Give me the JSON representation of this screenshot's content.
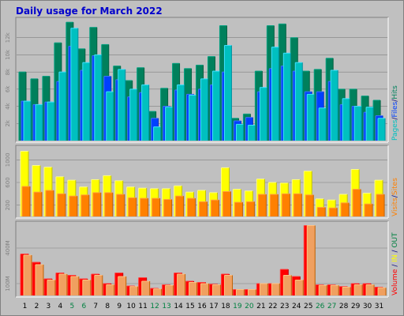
{
  "title": "Daily usage for March 2022",
  "colors": {
    "background": "#C0C0C0",
    "pages": "#00C0C0",
    "files": "#0040FF",
    "hits": "#00805C",
    "visits": "#FF8000",
    "sites": "#FF8000",
    "volume": "#FF0000",
    "in": "#FFFF00",
    "out": "#008040",
    "weekend_day": "#008040",
    "weekday": "#000000",
    "label_sep": "#000080"
  },
  "chart_data": [
    {
      "type": "bar",
      "id": "hits-files-pages",
      "y_ticks": [
        "2k",
        "4k",
        "6k",
        "8k",
        "10k",
        "12k"
      ],
      "ylim": [
        0,
        14000
      ],
      "legend": [
        "Pages",
        "Files",
        "Hits"
      ],
      "legend_separator": "/",
      "categories": [
        "1",
        "2",
        "3",
        "4",
        "5",
        "6",
        "7",
        "8",
        "9",
        "10",
        "11",
        "12",
        "13",
        "14",
        "15",
        "16",
        "17",
        "18",
        "19",
        "20",
        "21",
        "22",
        "23",
        "24",
        "25",
        "26",
        "27",
        "28",
        "29",
        "30",
        "31"
      ],
      "series": [
        {
          "name": "Hits",
          "values": [
            8000,
            7200,
            7500,
            11400,
            13800,
            10700,
            13200,
            11200,
            8700,
            7000,
            8500,
            3400,
            6100,
            9000,
            8400,
            8800,
            9800,
            13400,
            2600,
            3100,
            8100,
            13400,
            13600,
            12000,
            8100,
            8300,
            9600,
            6000,
            6000,
            5200,
            4700
          ]
        },
        {
          "name": "Files",
          "values": [
            4600,
            4200,
            4500,
            6900,
            11000,
            8200,
            9900,
            7500,
            7100,
            5100,
            5600,
            2600,
            4000,
            5900,
            5400,
            6000,
            6500,
            8000,
            2300,
            2700,
            5700,
            8400,
            8700,
            8100,
            5700,
            5700,
            6900,
            4200,
            4000,
            3300,
            2900
          ]
        },
        {
          "name": "Pages",
          "values": [
            4600,
            4200,
            4500,
            8000,
            13100,
            9100,
            10000,
            5700,
            8300,
            6000,
            6500,
            1600,
            3900,
            6500,
            5300,
            7200,
            8100,
            11100,
            1900,
            1800,
            6200,
            10900,
            10200,
            9100,
            5400,
            3800,
            8200,
            4900,
            4000,
            3900,
            2600
          ]
        }
      ]
    },
    {
      "type": "bar",
      "id": "visits-sites",
      "y_ticks": [
        "200",
        "600",
        "1000"
      ],
      "ylim": [
        0,
        1200
      ],
      "legend": [
        "Visits",
        "Sites"
      ],
      "legend_separator": "/",
      "categories": [
        "1",
        "2",
        "3",
        "4",
        "5",
        "6",
        "7",
        "8",
        "9",
        "10",
        "11",
        "12",
        "13",
        "14",
        "15",
        "16",
        "17",
        "18",
        "19",
        "20",
        "21",
        "22",
        "23",
        "24",
        "25",
        "26",
        "27",
        "28",
        "29",
        "30",
        "31"
      ],
      "series": [
        {
          "name": "Visits",
          "values": [
            1150,
            900,
            870,
            700,
            640,
            520,
            650,
            720,
            630,
            520,
            500,
            490,
            490,
            540,
            430,
            460,
            420,
            860,
            480,
            450,
            660,
            600,
            590,
            650,
            800,
            310,
            290,
            390,
            830,
            410,
            640
          ]
        },
        {
          "name": "Sites",
          "values": [
            530,
            430,
            460,
            400,
            360,
            380,
            420,
            420,
            390,
            330,
            320,
            320,
            300,
            360,
            320,
            260,
            290,
            440,
            250,
            260,
            390,
            390,
            400,
            400,
            380,
            160,
            150,
            240,
            480,
            220,
            390
          ]
        }
      ]
    },
    {
      "type": "bar",
      "id": "volume-in-out",
      "y_ticks": [
        "100M",
        "400M"
      ],
      "ylim": [
        0,
        600
      ],
      "legend": [
        "Volume",
        "IN",
        "OUT"
      ],
      "legend_separator": "/",
      "categories": [
        "1",
        "2",
        "3",
        "4",
        "5",
        "6",
        "7",
        "8",
        "9",
        "10",
        "11",
        "12",
        "13",
        "14",
        "15",
        "16",
        "17",
        "18",
        "19",
        "20",
        "21",
        "22",
        "23",
        "24",
        "25",
        "26",
        "27",
        "28",
        "29",
        "30",
        "31"
      ],
      "series": [
        {
          "name": "Volume",
          "values": [
            350,
            280,
            140,
            190,
            170,
            140,
            180,
            100,
            190,
            80,
            150,
            60,
            90,
            190,
            120,
            110,
            95,
            180,
            50,
            50,
            100,
            100,
            220,
            160,
            590,
            90,
            90,
            75,
            100,
            100,
            70
          ]
        },
        {
          "name": "IN",
          "values": [
            0,
            0,
            0,
            0,
            0,
            0,
            0,
            0,
            0,
            0,
            0,
            0,
            0,
            0,
            0,
            0,
            0,
            0,
            0,
            0,
            0,
            0,
            0,
            0,
            0,
            0,
            0,
            0,
            0,
            0,
            0
          ]
        },
        {
          "name": "OUT",
          "values": [
            340,
            260,
            130,
            180,
            160,
            130,
            170,
            90,
            160,
            75,
            120,
            55,
            85,
            180,
            110,
            100,
            90,
            170,
            50,
            50,
            100,
            100,
            170,
            130,
            590,
            85,
            85,
            70,
            90,
            90,
            65
          ]
        }
      ]
    }
  ],
  "weekend_days": [
    "5",
    "6",
    "12",
    "13",
    "19",
    "20",
    "26",
    "27"
  ]
}
